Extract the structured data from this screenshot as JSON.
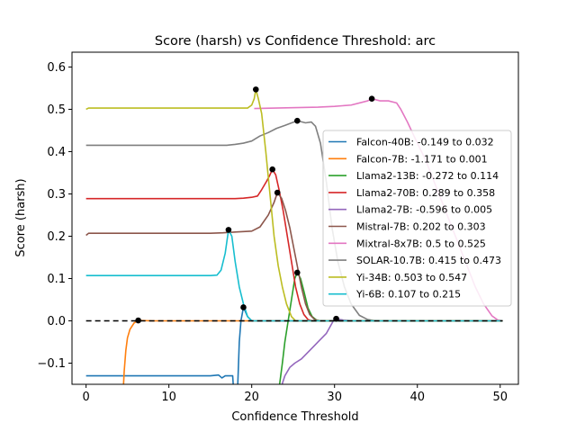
{
  "chart_data": {
    "type": "line",
    "title": "Score (harsh) vs Confidence Threshold: arc",
    "xlabel": "Confidence Threshold",
    "ylabel": "Score (harsh)",
    "xlim": [
      -1.7,
      52.2
    ],
    "ylim": [
      -0.15,
      0.635
    ],
    "xticks": [
      0,
      10,
      20,
      30,
      40,
      50
    ],
    "xtick_labels": [
      "0",
      "10",
      "20",
      "30",
      "40",
      "50"
    ],
    "yticks": [
      -0.1,
      0.0,
      0.1,
      0.2,
      0.3,
      0.4,
      0.5,
      0.6
    ],
    "ytick_labels": [
      "−0.1",
      "0.0",
      "0.1",
      "0.2",
      "0.3",
      "0.4",
      "0.5",
      "0.6"
    ],
    "grid": false,
    "legend_position": "center-right",
    "baseline": {
      "y": 0.0,
      "style": "dashed",
      "color": "#000000"
    },
    "series": [
      {
        "name": "Falcon-40B: -0.149 to 0.032",
        "color": "#1f77b4",
        "points": [
          [
            0,
            -0.13
          ],
          [
            15,
            -0.13
          ],
          [
            16,
            -0.128
          ],
          [
            16.4,
            -0.135
          ],
          [
            16.8,
            -0.13
          ],
          [
            17.7,
            -0.13
          ],
          [
            17.8,
            -0.16
          ],
          [
            18.3,
            -0.16
          ],
          [
            18.5,
            -0.05
          ],
          [
            18.7,
            0.0
          ],
          [
            19.0,
            0.032
          ],
          [
            19.5,
            0.01
          ],
          [
            20.0,
            0.0
          ],
          [
            20.5,
            0.0
          ],
          [
            21,
            0.0
          ],
          [
            50.3,
            0.0
          ]
        ],
        "max_marker": [
          19.0,
          0.032
        ]
      },
      {
        "name": "Falcon-7B: -1.171 to 0.001",
        "color": "#ff7f0e",
        "points": [
          [
            4.5,
            -0.16
          ],
          [
            4.6,
            -0.12
          ],
          [
            4.8,
            -0.07
          ],
          [
            5.0,
            -0.04
          ],
          [
            5.3,
            -0.02
          ],
          [
            5.8,
            -0.005
          ],
          [
            6.3,
            0.001
          ],
          [
            8,
            0.0
          ],
          [
            50.3,
            0.0
          ]
        ],
        "max_marker": [
          6.3,
          0.001
        ]
      },
      {
        "name": "Llama2-13B: -0.272 to 0.114",
        "color": "#2ca02c",
        "points": [
          [
            23.3,
            -0.16
          ],
          [
            23.7,
            -0.1
          ],
          [
            24.0,
            -0.05
          ],
          [
            24.4,
            0.0
          ],
          [
            24.8,
            0.05
          ],
          [
            25.2,
            0.1
          ],
          [
            25.5,
            0.114
          ],
          [
            25.9,
            0.1
          ],
          [
            26.3,
            0.07
          ],
          [
            26.8,
            0.03
          ],
          [
            27.3,
            0.01
          ],
          [
            27.8,
            0.002
          ],
          [
            28.3,
            0.0
          ],
          [
            50.3,
            0.0
          ]
        ],
        "max_marker": [
          25.5,
          0.114
        ]
      },
      {
        "name": "Llama2-70B: 0.289 to 0.358",
        "color": "#d62728",
        "points": [
          [
            0,
            0.289
          ],
          [
            18,
            0.289
          ],
          [
            19,
            0.29
          ],
          [
            20,
            0.292
          ],
          [
            20.7,
            0.295
          ],
          [
            21.2,
            0.31
          ],
          [
            21.8,
            0.33
          ],
          [
            22.2,
            0.345
          ],
          [
            22.5,
            0.358
          ],
          [
            22.9,
            0.345
          ],
          [
            23.3,
            0.31
          ],
          [
            23.8,
            0.26
          ],
          [
            24.3,
            0.2
          ],
          [
            24.8,
            0.14
          ],
          [
            25.3,
            0.08
          ],
          [
            25.8,
            0.04
          ],
          [
            26.3,
            0.015
          ],
          [
            26.8,
            0.003
          ],
          [
            27.3,
            0.0
          ],
          [
            50.3,
            0.0
          ]
        ],
        "max_marker": [
          22.5,
          0.358
        ]
      },
      {
        "name": "Llama2-7B: -0.596 to 0.005",
        "color": "#9467bd",
        "points": [
          [
            23.5,
            -0.16
          ],
          [
            24.0,
            -0.13
          ],
          [
            24.6,
            -0.11
          ],
          [
            25.2,
            -0.1
          ],
          [
            26.0,
            -0.09
          ],
          [
            27.0,
            -0.07
          ],
          [
            28.0,
            -0.05
          ],
          [
            29.0,
            -0.03
          ],
          [
            30.0,
            0.005
          ],
          [
            31.0,
            0.002
          ],
          [
            32,
            0.0
          ],
          [
            50.3,
            0.0
          ]
        ],
        "max_marker": [
          30.2,
          0.005
        ]
      },
      {
        "name": "Mistral-7B: 0.202 to 0.303",
        "color": "#8c564b",
        "points": [
          [
            0,
            0.202
          ],
          [
            0.3,
            0.207
          ],
          [
            15,
            0.207
          ],
          [
            16.5,
            0.208
          ],
          [
            18,
            0.21
          ],
          [
            20,
            0.212
          ],
          [
            21,
            0.222
          ],
          [
            22,
            0.25
          ],
          [
            22.7,
            0.28
          ],
          [
            23.1,
            0.303
          ],
          [
            23.6,
            0.29
          ],
          [
            24.1,
            0.26
          ],
          [
            24.6,
            0.22
          ],
          [
            25.0,
            0.18
          ],
          [
            25.5,
            0.13
          ],
          [
            26.0,
            0.08
          ],
          [
            26.5,
            0.04
          ],
          [
            27.0,
            0.015
          ],
          [
            27.6,
            0.003
          ],
          [
            28.2,
            0.0
          ],
          [
            50.3,
            0.0
          ]
        ],
        "max_marker": [
          23.1,
          0.303
        ]
      },
      {
        "name": "Mixtral-8x7B: 0.5 to 0.525",
        "color": "#e377c2",
        "points": [
          [
            20.3,
            0.502
          ],
          [
            28,
            0.505
          ],
          [
            30,
            0.507
          ],
          [
            32,
            0.51
          ],
          [
            34,
            0.52
          ],
          [
            34.5,
            0.525
          ],
          [
            35.5,
            0.52
          ],
          [
            36.5,
            0.52
          ],
          [
            37.5,
            0.515
          ],
          [
            38,
            0.5
          ],
          [
            38.8,
            0.47
          ],
          [
            40,
            0.42
          ],
          [
            41,
            0.38
          ],
          [
            42,
            0.33
          ],
          [
            43,
            0.28
          ],
          [
            44,
            0.23
          ],
          [
            45,
            0.18
          ],
          [
            46,
            0.13
          ],
          [
            47,
            0.08
          ],
          [
            48,
            0.04
          ],
          [
            49,
            0.012
          ],
          [
            49.7,
            0.002
          ],
          [
            50.3,
            0.0
          ]
        ],
        "max_marker": [
          34.5,
          0.525
        ]
      },
      {
        "name": "SOLAR-10.7B: 0.415 to 0.473",
        "color": "#7f7f7f",
        "points": [
          [
            0,
            0.415
          ],
          [
            17,
            0.415
          ],
          [
            18,
            0.417
          ],
          [
            19,
            0.42
          ],
          [
            20,
            0.425
          ],
          [
            21,
            0.437
          ],
          [
            22,
            0.445
          ],
          [
            23,
            0.455
          ],
          [
            24,
            0.462
          ],
          [
            25.5,
            0.473
          ],
          [
            26.5,
            0.468
          ],
          [
            27.2,
            0.47
          ],
          [
            27.7,
            0.46
          ],
          [
            28.3,
            0.42
          ],
          [
            29,
            0.33
          ],
          [
            29.7,
            0.22
          ],
          [
            30.4,
            0.14
          ],
          [
            31.2,
            0.08
          ],
          [
            32,
            0.04
          ],
          [
            33,
            0.013
          ],
          [
            34,
            0.003
          ],
          [
            35,
            0.0
          ],
          [
            50.3,
            0.0
          ]
        ],
        "max_marker": [
          25.5,
          0.473
        ]
      },
      {
        "name": "Yi-34B: 0.503 to 0.547",
        "color": "#bcbd22",
        "points": [
          [
            0,
            0.5
          ],
          [
            0.3,
            0.503
          ],
          [
            19.5,
            0.503
          ],
          [
            20.0,
            0.51
          ],
          [
            20.3,
            0.525
          ],
          [
            20.5,
            0.547
          ],
          [
            20.8,
            0.525
          ],
          [
            21.2,
            0.49
          ],
          [
            21.7,
            0.4
          ],
          [
            22.2,
            0.3
          ],
          [
            22.7,
            0.2
          ],
          [
            23.2,
            0.13
          ],
          [
            23.7,
            0.08
          ],
          [
            24.2,
            0.04
          ],
          [
            24.8,
            0.01
          ],
          [
            25.3,
            0.0
          ],
          [
            50.3,
            0.0
          ]
        ],
        "max_marker": [
          20.5,
          0.547
        ]
      },
      {
        "name": "Yi-6B: 0.107 to 0.215",
        "color": "#17becf",
        "points": [
          [
            0,
            0.107
          ],
          [
            15,
            0.107
          ],
          [
            15.8,
            0.108
          ],
          [
            16.3,
            0.12
          ],
          [
            16.8,
            0.16
          ],
          [
            17.2,
            0.215
          ],
          [
            17.6,
            0.2
          ],
          [
            18.0,
            0.14
          ],
          [
            18.5,
            0.08
          ],
          [
            19.0,
            0.04
          ],
          [
            19.5,
            0.01
          ],
          [
            20,
            0.0
          ],
          [
            21,
            0.0
          ],
          [
            50.3,
            0.0
          ]
        ],
        "max_marker": [
          17.2,
          0.215
        ]
      }
    ]
  }
}
